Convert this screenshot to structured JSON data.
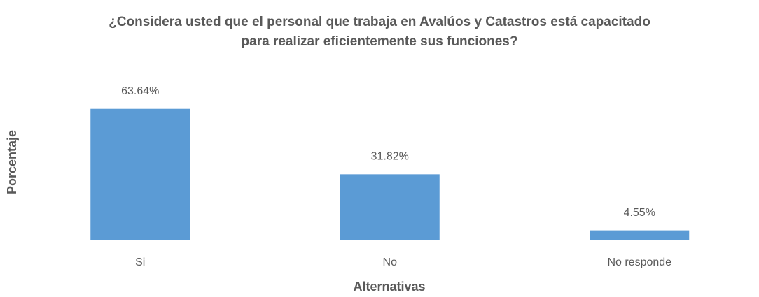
{
  "chart_data": {
    "type": "bar",
    "title": "¿Considera usted que el personal que trabaja en Avalúos y Catastros está capacitado para realizar eficientemente sus funciones?",
    "x_label": "Alternativas",
    "y_label": "Porcentaje",
    "categories": [
      "Si",
      "No",
      "No responde"
    ],
    "values": [
      63.64,
      31.82,
      4.55
    ],
    "value_labels": [
      "63.64%",
      "31.82%",
      "4.55%"
    ],
    "color": "#5b9bd5",
    "ylim": [
      0,
      70
    ]
  }
}
